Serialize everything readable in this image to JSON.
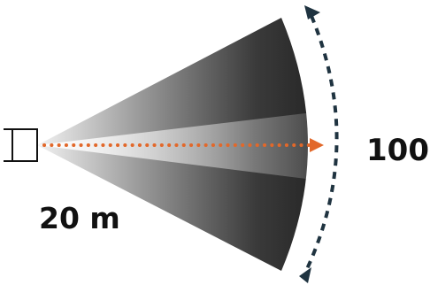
{
  "diagram": {
    "range_label": "20 m",
    "angle_label": "100º",
    "icons": {
      "sensor": "sensor-icon",
      "beam": "beam-cone",
      "arc_arrow": "angle-arc-arrow",
      "range_arrow": "range-dotted-arrow"
    },
    "colors": {
      "beam_dark": "#222222",
      "beam_light": "#ffffff",
      "range_arrow": "#e2682a",
      "arc_arrow": "#1f3340",
      "sensor_outline": "#111111",
      "text": "#111111"
    }
  }
}
